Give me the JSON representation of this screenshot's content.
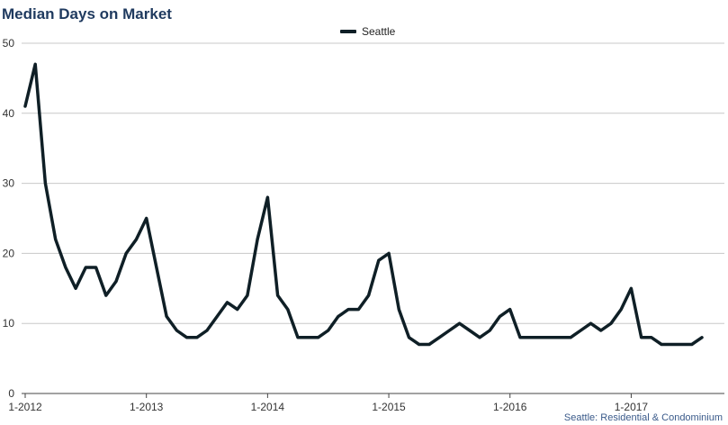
{
  "title": "Median Days on Market",
  "footnote": "Seattle: Residential & Condominium",
  "chart_data": {
    "type": "line",
    "title": "Median Days on Market",
    "xlabel": "",
    "ylabel": "",
    "ylim": [
      0,
      50
    ],
    "yticks": [
      0,
      10,
      20,
      30,
      40,
      50
    ],
    "grid": true,
    "legend_placement": "top-center",
    "x_tick_labels": [
      "1-2012",
      "1-2013",
      "1-2014",
      "1-2015",
      "1-2016",
      "1-2017"
    ],
    "x_tick_months": [
      0,
      12,
      24,
      36,
      48,
      60
    ],
    "x_range_months": [
      0,
      67
    ],
    "series": [
      {
        "name": "Seattle",
        "color": "#0f1f26",
        "values": [
          41,
          47,
          30,
          22,
          18,
          15,
          18,
          18,
          14,
          16,
          20,
          22,
          25,
          18,
          11,
          9,
          8,
          8,
          9,
          11,
          13,
          12,
          14,
          22,
          28,
          14,
          12,
          8,
          8,
          8,
          9,
          11,
          12,
          12,
          14,
          19,
          20,
          12,
          8,
          7,
          7,
          8,
          9,
          10,
          9,
          8,
          9,
          11,
          12,
          8,
          8,
          8,
          8,
          8,
          8,
          9,
          10,
          9,
          10,
          12,
          15,
          8,
          8,
          7,
          7,
          7,
          7,
          8
        ]
      }
    ]
  }
}
